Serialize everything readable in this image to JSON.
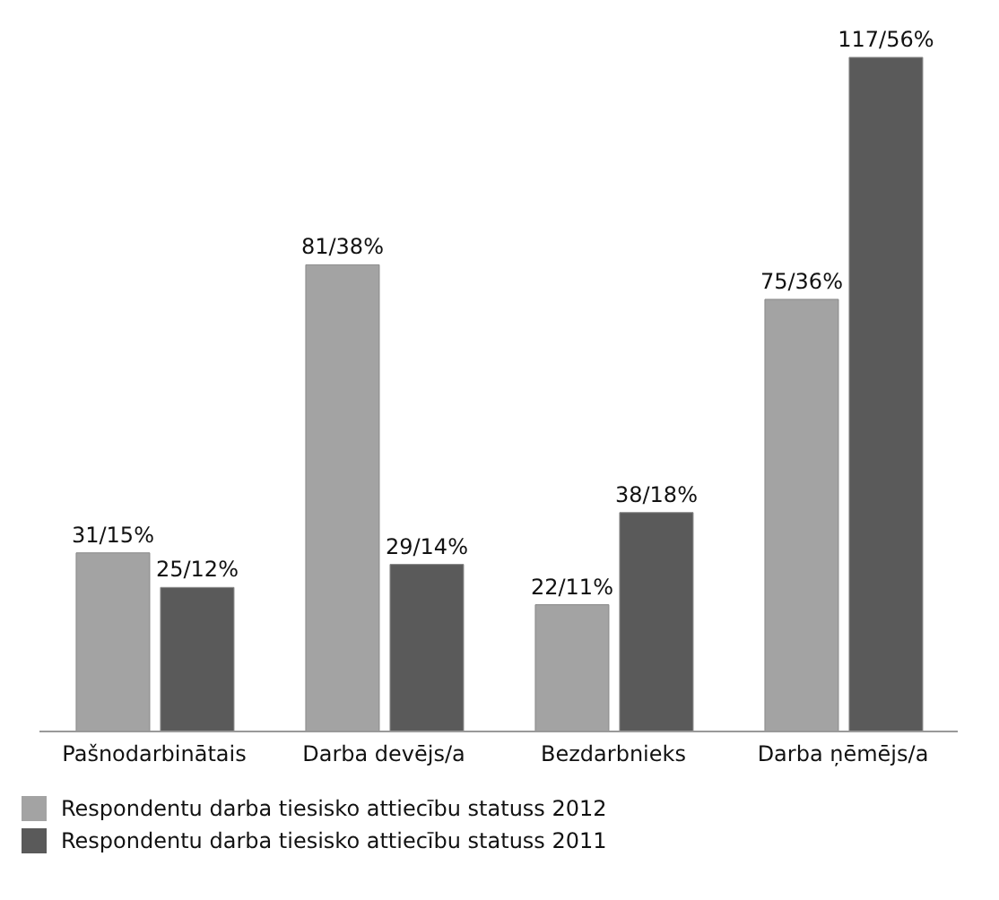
{
  "chart_data": {
    "type": "bar",
    "categories": [
      "Pašnodarbinātais",
      "Darba devējs/a",
      "Bezdarbnieks",
      "Darba ņēmējs/a"
    ],
    "series": [
      {
        "name": "Respondentu darba tiesisko attiecību statuss 2012",
        "color": "#a3a3a3",
        "values": [
          31,
          81,
          22,
          75
        ],
        "value_labels": [
          "31/15%",
          "81/38%",
          "22/11%",
          "75/36%"
        ]
      },
      {
        "name": "Respondentu darba tiesisko attiecību statuss 2011",
        "color": "#5a5a5a",
        "values": [
          25,
          29,
          38,
          117
        ],
        "value_labels": [
          "25/12%",
          "29/14%",
          "38/18%",
          "117/56%"
        ]
      }
    ],
    "legend": "bottom",
    "grid": false
  }
}
